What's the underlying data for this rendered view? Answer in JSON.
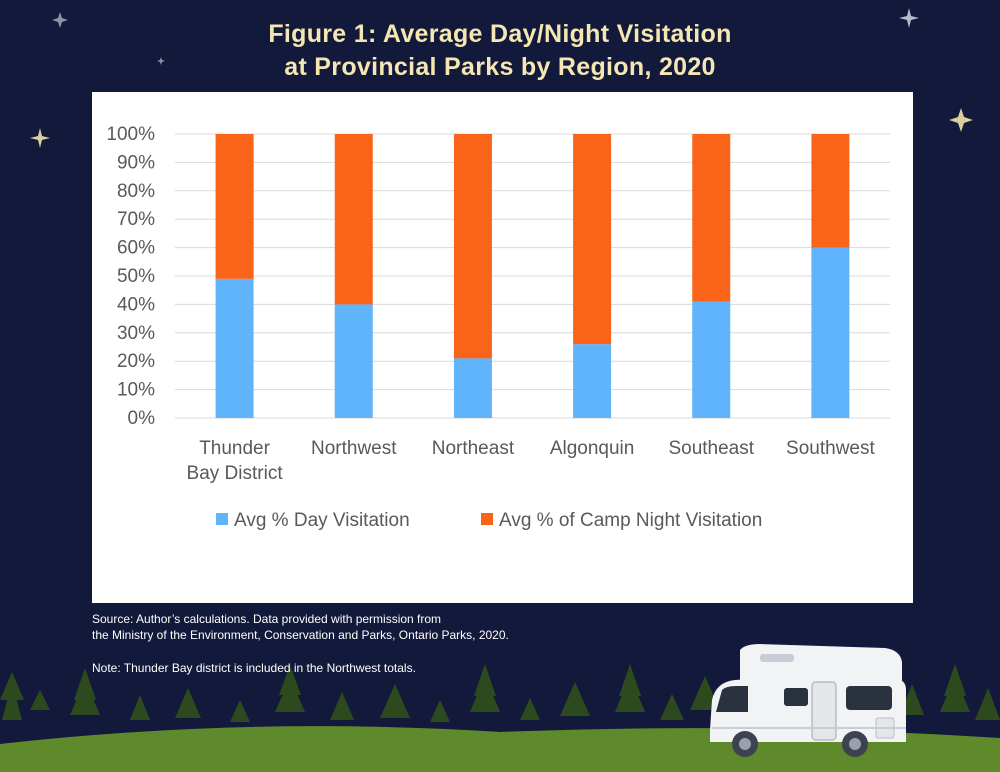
{
  "title": {
    "line1": "Figure 1: Average Day/Night Visitation",
    "line2": "at Provincial Parks by Region, 2020"
  },
  "source": {
    "line1": "Source: Author’s calculations. Data provided with permission from",
    "line2": "the Ministry of the Environment, Conservation and Parks, Ontario Parks, 2020."
  },
  "note": "Note: Thunder Bay district is included in the Northwest totals.",
  "colors": {
    "background": "#13193b",
    "title": "#f4e7b2",
    "day": "#5fb4fb",
    "night": "#fa6418",
    "grid": "#d9d9d9",
    "axis_text": "#595959"
  },
  "chart_data": {
    "type": "bar",
    "stacked": true,
    "percent": true,
    "categories": [
      [
        "Thunder",
        "Bay District"
      ],
      [
        "Northwest"
      ],
      [
        "Northeast"
      ],
      [
        "Algonquin"
      ],
      [
        "Southeast"
      ],
      [
        "Southwest"
      ]
    ],
    "series": [
      {
        "name": "Avg % Day Visitation",
        "values": [
          49,
          40,
          21,
          26,
          41,
          60
        ]
      },
      {
        "name": "Avg % of Camp Night Visitation",
        "values": [
          51,
          60,
          79,
          74,
          59,
          40
        ]
      }
    ],
    "y_ticks": [
      "0%",
      "10%",
      "20%",
      "30%",
      "40%",
      "50%",
      "60%",
      "70%",
      "80%",
      "90%",
      "100%"
    ],
    "ylim": [
      0,
      100
    ],
    "grid": true,
    "legend": "bottom"
  }
}
